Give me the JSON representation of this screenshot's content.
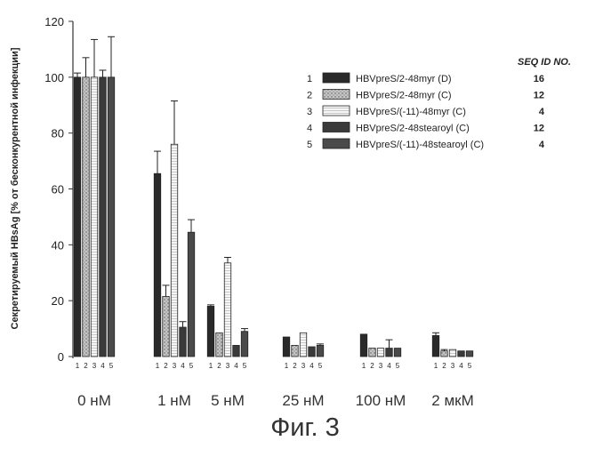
{
  "chart_data": {
    "type": "bar",
    "ylabel": "Секретируемый HBsAg [% от бесконкурентной инфекции]",
    "ylim": [
      0,
      120
    ],
    "yticks": [
      "0",
      "20",
      "40",
      "60",
      "80",
      "100",
      "120"
    ],
    "categories": [
      "0 нМ",
      "1 нМ",
      "5 нМ",
      "25 нМ",
      "100 нМ",
      "2 мкМ"
    ],
    "bar_sublabels": [
      "1",
      "2",
      "3",
      "4",
      "5"
    ],
    "seq_header": "SEQ ID NO.",
    "series": [
      {
        "num": "1",
        "name": "HBVpreS/2-48myr (D)",
        "seq": "16",
        "values": [
          100,
          65.5,
          18,
          7,
          8,
          7.5
        ],
        "errors": [
          1.5,
          8,
          0.5,
          0,
          0,
          1
        ]
      },
      {
        "num": "2",
        "name": "HBVpreS/2-48myr (C)",
        "seq": "12",
        "values": [
          100,
          21.5,
          8.5,
          4,
          3,
          2
        ],
        "errors": [
          7,
          4,
          0,
          0,
          0,
          0.5
        ]
      },
      {
        "num": "3",
        "name": "HBVpreS/(-11)-48myr (C)",
        "seq": "4",
        "values": [
          100,
          76,
          33.5,
          8.5,
          3,
          2.5
        ],
        "errors": [
          13.5,
          15.5,
          2,
          0,
          0,
          0
        ]
      },
      {
        "num": "4",
        "name": "HBVpreS/2-48stearoyl (C)",
        "seq": "12",
        "values": [
          100,
          10.5,
          4,
          3.5,
          3,
          2
        ],
        "errors": [
          2.5,
          2,
          0,
          0,
          3,
          0
        ]
      },
      {
        "num": "5",
        "name": "HBVpreS/(-11)-48stearoyl (C)",
        "seq": "4",
        "values": [
          100,
          44.5,
          9,
          4,
          3,
          2
        ],
        "errors": [
          14.5,
          4.5,
          1,
          0.5,
          0,
          0
        ]
      }
    ],
    "series_colors": [
      "#2a2a2a",
      "#b5b5b5",
      "#f2f2f2",
      "#3a3a3a",
      "#4a4a4a"
    ],
    "legend_position": "top-right",
    "grid": false
  },
  "figure_caption": "Фиг. 3"
}
